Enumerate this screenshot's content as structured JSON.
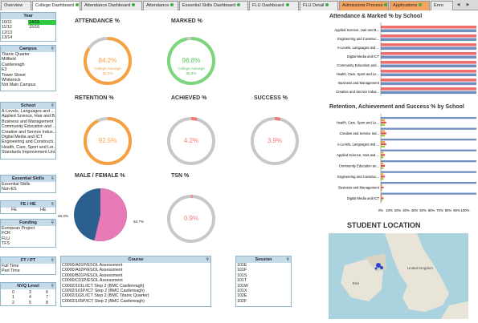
{
  "tabs": [
    {
      "label": "Overview",
      "dot": false,
      "active": false,
      "orange": false
    },
    {
      "label": "College Dashboard",
      "dot": true,
      "active": true,
      "orange": false
    },
    {
      "label": "Attendance Dashboard",
      "dot": true,
      "active": false,
      "orange": false
    },
    {
      "label": "Attendance",
      "dot": true,
      "active": false,
      "orange": false
    },
    {
      "label": "Essential Skills Dashboard",
      "dot": true,
      "active": false,
      "orange": false
    },
    {
      "label": "FLU Dashboard",
      "dot": true,
      "active": false,
      "orange": false
    },
    {
      "label": "FLU Detail",
      "dot": true,
      "active": false,
      "orange": false
    },
    {
      "label": "Admissions Process",
      "dot": true,
      "active": false,
      "orange": true
    },
    {
      "label": "Applications",
      "dot": true,
      "active": false,
      "orange": true
    },
    {
      "label": "Enro",
      "dot": false,
      "active": false,
      "orange": false
    }
  ],
  "nav_icons": [
    "triangle-left-icon",
    "triangle-right-icon"
  ],
  "filters": {
    "year": {
      "title": "Year",
      "items": [
        "10/11",
        "11/12",
        "12/13",
        "13/14"
      ],
      "items_right": [
        "14/15",
        "15/16"
      ],
      "selected_right": "14/15"
    },
    "campus": {
      "title": "Campus",
      "items": [
        "Titanic Quarter",
        "Millfield",
        "Castlereagh",
        "E3",
        "Tower Street",
        "Whiterock",
        "Not Main Campus"
      ]
    },
    "school": {
      "title": "School",
      "items": [
        "A-Levels, Languages and ...",
        "Applied Science, Hair and B...",
        "Business and Management",
        "Community Education and ...",
        "Creative and Service Indus...",
        "Digital Media and ICT",
        "Engineering and Constructi...",
        "Health, Care, Sport and Lei...",
        "Standards Improvement Uni..."
      ]
    },
    "essential_skills": {
      "title": "Essential Skills",
      "items": [
        "Essential Skills",
        "Non-ES"
      ]
    },
    "fe_he": {
      "title": "FE / HE",
      "items": [
        "FE",
        "HE"
      ]
    },
    "funding": {
      "title": "Funding",
      "items": [
        "European Project",
        "FCR",
        "FLU",
        "TFS"
      ]
    },
    "ft_pt": {
      "title": "FT / PT",
      "items": [
        "Full Time",
        "Part Time"
      ]
    },
    "nvq": {
      "title": "NVQ Level",
      "rows": [
        [
          "0",
          "3",
          "6"
        ],
        [
          "1",
          "4",
          "7"
        ],
        [
          "2",
          "5",
          "8"
        ]
      ]
    },
    "course": {
      "title": "Course",
      "items": [
        "C0000/A01P/ESOL Assessment",
        "C0000/A02P/ESOL Assessment",
        "C0000/B01P/ESOL Assessment",
        "C0000/C01P/ESOL Assessment",
        "C0002/101L/ICT Step 2  (BMC Castlereagh)",
        "C0002/101P/ICT Step 2  (BMC Castlereagh)",
        "C0002/102L/ICT Step 2  (BMC Titanic Quarter)",
        "C0002/105P/ICT Step 2  (BMC Castlereagh)"
      ]
    },
    "session": {
      "title": "Session",
      "items": [
        "101E",
        "101F",
        "101S",
        "101T",
        "101W",
        "101X",
        "102E",
        "102F"
      ]
    }
  },
  "gauges": {
    "attendance": {
      "title": "ATTENDANCE %",
      "value": "84.2%",
      "avg_label": "College Average",
      "avg_value": "84.2%",
      "fraction": 0.842,
      "color": "#f5a142"
    },
    "marked": {
      "title": "MARKED %",
      "value": "96.8%",
      "avg_label": "College Average",
      "avg_value": "96.8%",
      "fraction": 0.968,
      "color": "#7cd67c"
    },
    "retention": {
      "title": "RETENTION %",
      "value": "92.5%",
      "fraction": 0.925,
      "color": "#f5a142"
    },
    "achieved": {
      "title": "ACHIEVED %",
      "value": "4.2%",
      "fraction": 0.042,
      "color": "#f47a7a"
    },
    "success": {
      "title": "SUCCESS %",
      "value": "3.9%",
      "fraction": 0.039,
      "color": "#f47a7a"
    },
    "tsn": {
      "title": "TSN %",
      "value": "0.9%",
      "fraction": 0.009,
      "color": "#f47a7a"
    }
  },
  "male_female": {
    "title": "MALE / FEMALE %",
    "male_label": "46.3%",
    "female_label": "53.7%",
    "male": 46.3,
    "female": 53.7,
    "male_color": "#2b5f8f",
    "female_color": "#e87bb5"
  },
  "student_location": {
    "title": "STUDENT LOCATION",
    "map_labels": [
      "United Kingdom",
      "Eire"
    ]
  },
  "chart_data": [
    {
      "type": "bar",
      "title": "Attendance & Marked % by School",
      "categories": [
        "Applied Science, Hair and B...",
        "Engineering and Construc...",
        "A-Levels, Languages and ...",
        "Digital Media and ICT",
        "Community Education and...",
        "Health, Care, Sport and Le...",
        "Business and Management",
        "Creative and Service Indus..."
      ],
      "series": [
        {
          "values": [
            88,
            87,
            84,
            85,
            80,
            84,
            81,
            79
          ],
          "color": "#ef6f6f"
        },
        {
          "values": [
            99,
            98,
            98,
            98,
            98,
            96,
            95,
            93
          ],
          "color": "#6f8fbf"
        }
      ],
      "xlim": [
        0,
        100
      ]
    },
    {
      "type": "bar",
      "title": "Retention, Achievement and Success % by School",
      "categories": [
        "Health, Care, Sport and Le...",
        "Creative and Service Ind...",
        "A-Levels, Languages and ...",
        "Applied Science, Hair and ...",
        "Community Education an...",
        "Engineering and Construc...",
        "Business and Management",
        "Digital Media and ICT"
      ],
      "series": [
        {
          "values": [
            94,
            92,
            91,
            90,
            89,
            92,
            94,
            94
          ],
          "color": "#6f8fbf"
        },
        {
          "values": [
            3,
            3,
            3,
            2,
            2,
            2,
            1,
            1
          ],
          "color": "#f5a142"
        },
        {
          "values": [
            4,
            4,
            4,
            3,
            3,
            3,
            2,
            2
          ],
          "color": "#e05050"
        },
        {
          "values": [
            3,
            3,
            3,
            2,
            2,
            2,
            1,
            1
          ],
          "color": "#9acd32"
        }
      ],
      "xlim": [
        0,
        100
      ],
      "x_ticks": [
        "0%",
        "10%",
        "20%",
        "30%",
        "40%",
        "50%",
        "60%",
        "70%",
        "80%",
        "90%",
        "100%"
      ]
    }
  ],
  "colors": {
    "panel_header": "#c5dbe8",
    "selected": "#2ecc40"
  }
}
